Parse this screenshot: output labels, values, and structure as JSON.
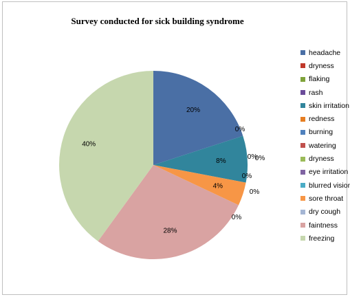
{
  "chart_data": {
    "type": "pie",
    "title": "Survey conducted for sick building syndrome",
    "legend_position": "right",
    "slices": [
      {
        "label": "headache",
        "value": 20,
        "display": "20%",
        "color": "#4a6fa5"
      },
      {
        "label": "dryness",
        "value": 0,
        "display": "0%",
        "color": "#c0392b"
      },
      {
        "label": "flaking",
        "value": 0,
        "display": "0%",
        "color": "#7fa33a"
      },
      {
        "label": "rash",
        "value": 0,
        "display": "0%",
        "color": "#6b4c9a"
      },
      {
        "label": "skin irritation",
        "value": 8,
        "display": "8%",
        "color": "#31859c"
      },
      {
        "label": "redness",
        "value": 0,
        "display": "0%",
        "color": "#e67e22"
      },
      {
        "label": "burning",
        "value": 0,
        "display": "0%",
        "color": "#4f81bd"
      },
      {
        "label": "watering",
        "value": 0,
        "display": "0%",
        "color": "#c0504d"
      },
      {
        "label": "dryness",
        "value": 0,
        "display": "0%",
        "color": "#9bbb59"
      },
      {
        "label": "eye irritation",
        "value": 0,
        "display": "0%",
        "color": "#8064a2"
      },
      {
        "label": "blurred vision",
        "value": 0,
        "display": "0%",
        "color": "#4bacc6"
      },
      {
        "label": "sore throat",
        "value": 4,
        "display": "4%",
        "color": "#f79646"
      },
      {
        "label": "dry cough",
        "value": 0,
        "display": "0%",
        "color": "#a5b6d4"
      },
      {
        "label": "faintness",
        "value": 28,
        "display": "28%",
        "color": "#d9a3a2"
      },
      {
        "label": "freezing",
        "value": 40,
        "display": "40%",
        "color": "#c6d7ae"
      }
    ]
  }
}
